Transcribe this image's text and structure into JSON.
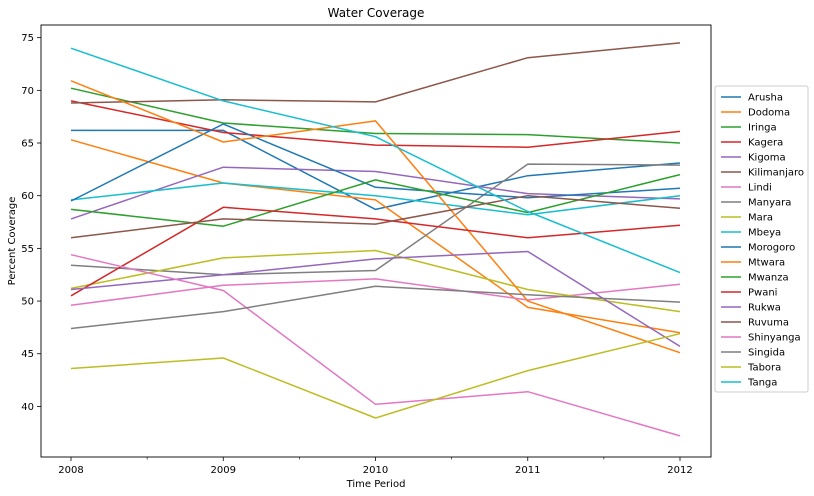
{
  "chart_data": {
    "type": "line",
    "title": "Water Coverage",
    "xlabel": "Time Period",
    "ylabel": "Percent Coverage",
    "x": [
      "2008",
      "2009",
      "2010",
      "2011",
      "2012"
    ],
    "ylim": [
      35.2,
      76.2
    ],
    "yticks": [
      "40",
      "45",
      "50",
      "55",
      "60",
      "65",
      "70",
      "75"
    ],
    "grid": false,
    "legend_position": "right",
    "series": [
      {
        "name": "Arusha",
        "color": "#1f77b4",
        "values": [
          66.2,
          66.2,
          58.7,
          61.9,
          63.1
        ]
      },
      {
        "name": "Dodoma",
        "color": "#ff7f0e",
        "values": [
          65.3,
          61.2,
          59.6,
          49.4,
          47.0
        ]
      },
      {
        "name": "Iringa",
        "color": "#2ca02c",
        "values": [
          70.2,
          66.9,
          65.9,
          65.8,
          65.0
        ]
      },
      {
        "name": "Kagera",
        "color": "#d62728",
        "values": [
          69.0,
          66.0,
          64.8,
          64.6,
          66.1
        ]
      },
      {
        "name": "Kigoma",
        "color": "#9467bd",
        "values": [
          57.8,
          62.7,
          62.3,
          60.2,
          59.7
        ]
      },
      {
        "name": "Kilimanjaro",
        "color": "#8c564b",
        "values": [
          68.8,
          69.1,
          68.9,
          73.1,
          74.5
        ]
      },
      {
        "name": "Lindi",
        "color": "#e377c2",
        "values": [
          49.6,
          51.5,
          52.1,
          50.1,
          51.6
        ]
      },
      {
        "name": "Manyara",
        "color": "#7f7f7f",
        "values": [
          53.4,
          52.5,
          52.9,
          63.0,
          62.9
        ]
      },
      {
        "name": "Mara",
        "color": "#bcbd22",
        "values": [
          51.2,
          54.1,
          54.8,
          51.1,
          49.0
        ]
      },
      {
        "name": "Mbeya",
        "color": "#17becf",
        "values": [
          59.6,
          61.2,
          60.0,
          58.2,
          60.0
        ]
      },
      {
        "name": "Morogoro",
        "color": "#1f77b4",
        "values": [
          59.5,
          66.8,
          60.8,
          59.8,
          60.7
        ]
      },
      {
        "name": "Mtwara",
        "color": "#ff7f0e",
        "values": [
          70.9,
          65.1,
          67.1,
          50.0,
          45.1
        ]
      },
      {
        "name": "Mwanza",
        "color": "#2ca02c",
        "values": [
          58.7,
          57.1,
          61.5,
          58.4,
          62.0
        ]
      },
      {
        "name": "Pwani",
        "color": "#d62728",
        "values": [
          50.5,
          58.9,
          57.8,
          56.0,
          57.2
        ]
      },
      {
        "name": "Rukwa",
        "color": "#9467bd",
        "values": [
          51.1,
          52.5,
          54.0,
          54.7,
          45.7
        ]
      },
      {
        "name": "Ruvuma",
        "color": "#8c564b",
        "values": [
          56.0,
          57.8,
          57.3,
          60.0,
          58.8
        ]
      },
      {
        "name": "Shinyanga",
        "color": "#e377c2",
        "values": [
          54.4,
          51.0,
          40.2,
          41.4,
          37.2
        ]
      },
      {
        "name": "Singida",
        "color": "#7f7f7f",
        "values": [
          47.4,
          49.0,
          51.4,
          50.6,
          49.9
        ]
      },
      {
        "name": "Tabora",
        "color": "#bcbd22",
        "values": [
          43.6,
          44.6,
          38.9,
          43.4,
          46.9
        ]
      },
      {
        "name": "Tanga",
        "color": "#17becf",
        "values": [
          74.0,
          69.0,
          65.6,
          58.5,
          52.7
        ]
      }
    ]
  }
}
